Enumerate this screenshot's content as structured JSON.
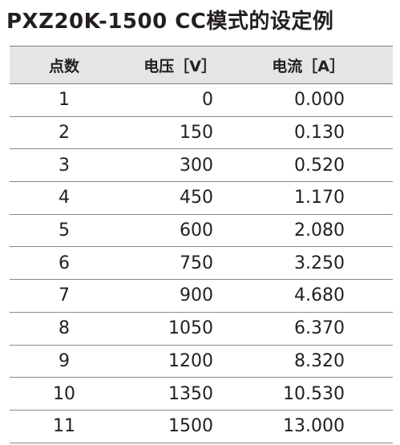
{
  "title": "PXZ20K-1500  CC模式的设定例",
  "table": {
    "headers": [
      "点数",
      "电压［V］",
      "电流［A］"
    ],
    "rows": [
      [
        "1",
        "0",
        "0.000"
      ],
      [
        "2",
        "150",
        "0.130"
      ],
      [
        "3",
        "300",
        "0.520"
      ],
      [
        "4",
        "450",
        "1.170"
      ],
      [
        "5",
        "600",
        "2.080"
      ],
      [
        "6",
        "750",
        "3.250"
      ],
      [
        "7",
        "900",
        "4.680"
      ],
      [
        "8",
        "1050",
        "6.370"
      ],
      [
        "9",
        "1200",
        "8.320"
      ],
      [
        "10",
        "1350",
        "10.530"
      ],
      [
        "11",
        "1500",
        "13.000"
      ]
    ]
  }
}
